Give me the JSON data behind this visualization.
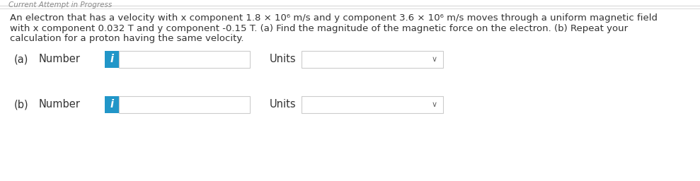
{
  "bg_color": "#ffffff",
  "panel_color": "#ffffff",
  "title_text_line1": "An electron that has a velocity with x component 1.8 × 10⁶ m/s and y component 3.6 × 10⁶ m/s moves through a uniform magnetic field",
  "title_text_line2": "with x component 0.032 T and y component -0.15 T. (a) Find the magnitude of the magnetic force on the electron. (b) Repeat your",
  "title_text_line3": "calculation for a proton having the same velocity.",
  "label_a": "(a)   Number",
  "label_b": "(b)   Number",
  "units_label": "Units",
  "info_btn_color": "#2196c8",
  "info_btn_text": "i",
  "input_box_color": "#ffffff",
  "input_box_border": "#cccccc",
  "dropdown_border": "#cccccc",
  "top_bar_text": "Current Attempt in Progress",
  "top_bar_color": "#888888",
  "font_size_body": 9.5,
  "font_size_label": 10.5,
  "text_color": "#333333",
  "separator_color": "#dddddd",
  "bold_parts": [
    "(a)",
    "(b)"
  ],
  "row_a_label_normal": "(a)   Number",
  "row_b_label_normal": "(b)   Number"
}
